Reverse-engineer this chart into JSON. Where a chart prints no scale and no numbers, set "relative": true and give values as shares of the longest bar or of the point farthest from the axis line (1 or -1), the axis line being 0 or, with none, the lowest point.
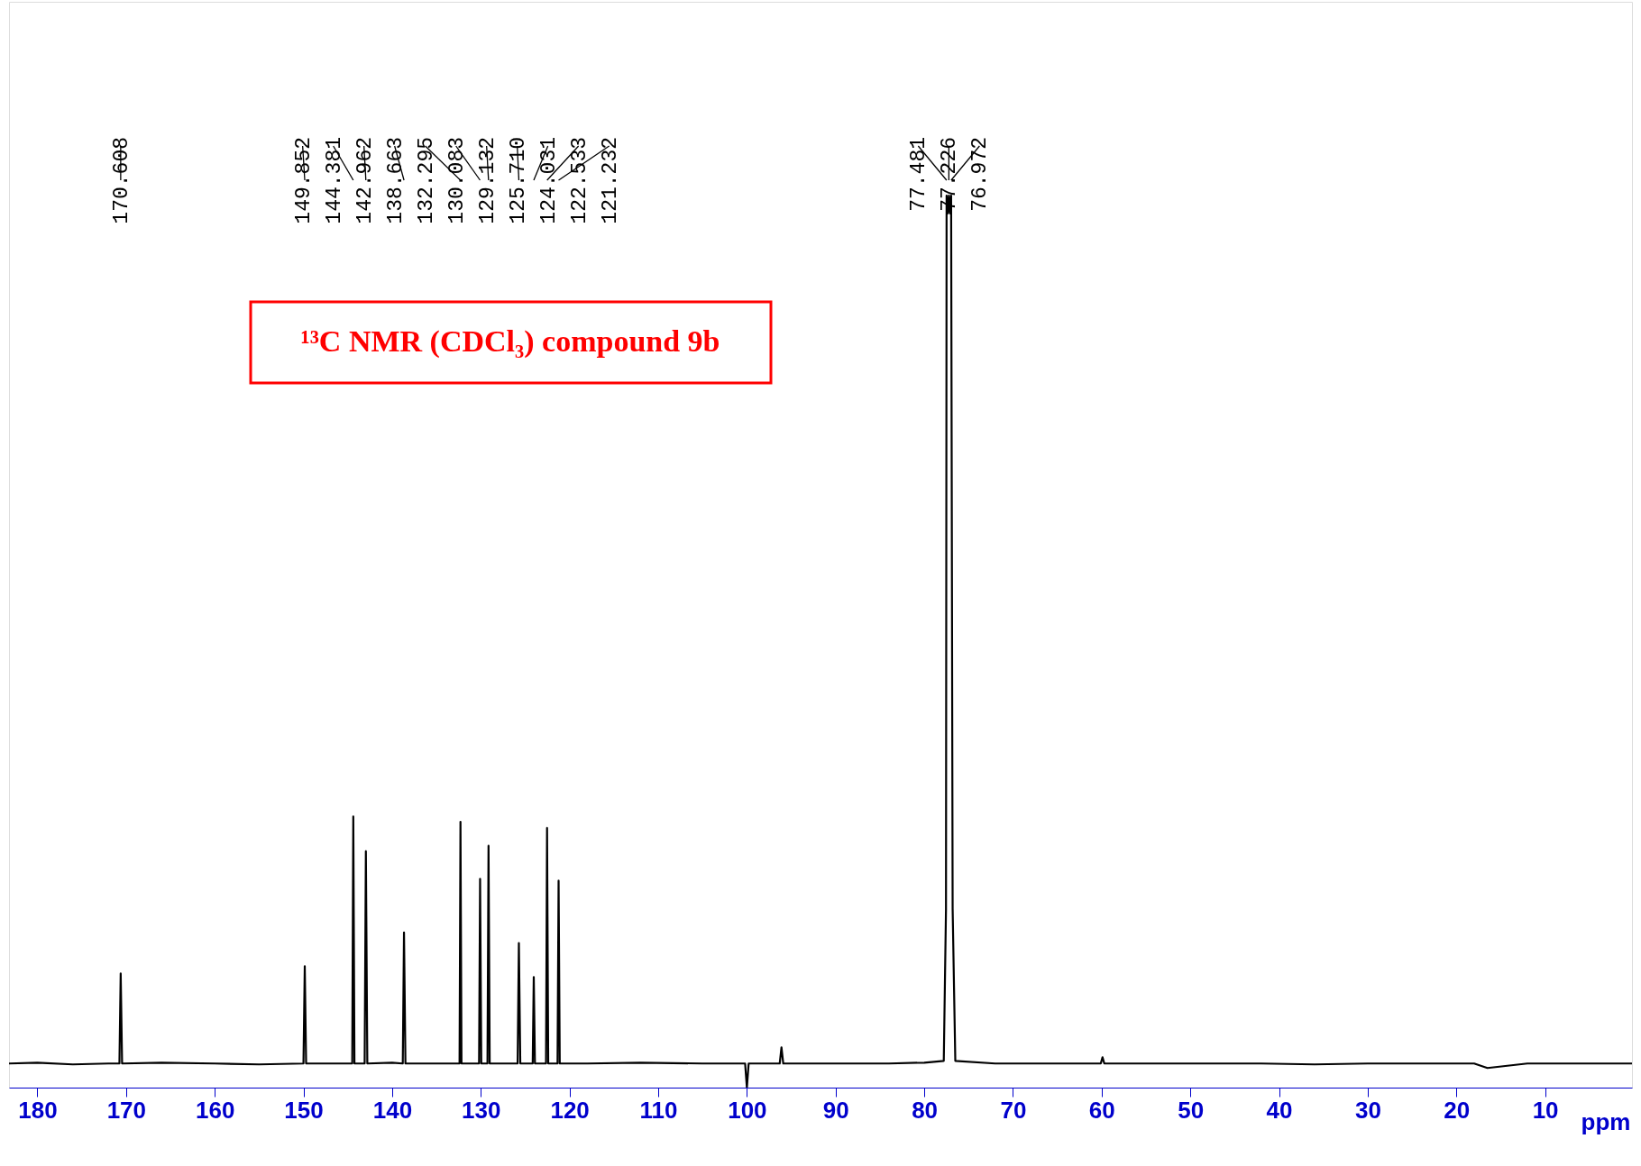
{
  "chart_data": {
    "type": "line",
    "relative": true,
    "xlabel": "ppm",
    "xlim": [
      183.2,
      0.2
    ],
    "xticks": [
      180,
      170,
      160,
      150,
      140,
      130,
      120,
      110,
      100,
      90,
      80,
      70,
      60,
      50,
      40,
      30,
      20,
      10
    ],
    "grid": false,
    "marker": "none",
    "line_style": "solid",
    "series": [
      {
        "color": "#000000",
        "x": [
          183.2,
          180,
          176,
          172,
          170.75,
          170.608,
          170.45,
          166,
          160,
          155,
          150.0,
          149.852,
          149.7,
          146,
          144.5,
          144.381,
          144.25,
          143.1,
          142.962,
          142.8,
          140,
          138.8,
          138.663,
          138.5,
          135,
          132.4,
          132.295,
          132.18,
          130.2,
          130.083,
          129.95,
          129.25,
          129.132,
          129.0,
          125.85,
          125.71,
          125.55,
          124.15,
          124.031,
          123.9,
          122.65,
          122.533,
          122.4,
          121.35,
          121.232,
          121.1,
          118,
          112,
          105,
          100.2,
          100.0,
          99.8,
          96.3,
          96.1,
          95.9,
          90,
          84,
          80,
          77.8,
          77.55,
          77.481,
          77.35,
          77.226,
          77.1,
          76.972,
          76.8,
          76.5,
          72,
          66,
          60.1,
          59.9,
          59.7,
          54,
          48,
          42,
          36,
          30,
          24,
          18,
          16.5,
          12,
          6,
          0.2
        ],
        "values": [
          0.027,
          0.028,
          0.026,
          0.027,
          0.027,
          0.128,
          0.027,
          0.028,
          0.027,
          0.026,
          0.027,
          0.136,
          0.027,
          0.027,
          0.027,
          0.304,
          0.027,
          0.027,
          0.265,
          0.027,
          0.028,
          0.027,
          0.174,
          0.027,
          0.027,
          0.027,
          0.298,
          0.027,
          0.027,
          0.234,
          0.027,
          0.027,
          0.271,
          0.027,
          0.027,
          0.162,
          0.027,
          0.027,
          0.124,
          0.027,
          0.027,
          0.291,
          0.027,
          0.027,
          0.232,
          0.027,
          0.027,
          0.028,
          0.027,
          0.027,
          0.0,
          0.027,
          0.027,
          0.045,
          0.027,
          0.027,
          0.027,
          0.028,
          0.03,
          0.2,
          1.0,
          0.98,
          1.0,
          0.98,
          1.0,
          0.2,
          0.03,
          0.027,
          0.027,
          0.027,
          0.034,
          0.027,
          0.027,
          0.027,
          0.027,
          0.026,
          0.027,
          0.027,
          0.027,
          0.022,
          0.027,
          0.027,
          0.027
        ]
      }
    ],
    "annotations": [
      "¹³C NMR (CDCl₃) compound 9b",
      "170.608",
      "149.852",
      "144.381",
      "142.962",
      "138.663",
      "132.295",
      "130.083",
      "129.132",
      "125.710",
      "124.031",
      "122.533",
      "121.232",
      "77.481",
      "77.226",
      "76.972"
    ]
  }
}
